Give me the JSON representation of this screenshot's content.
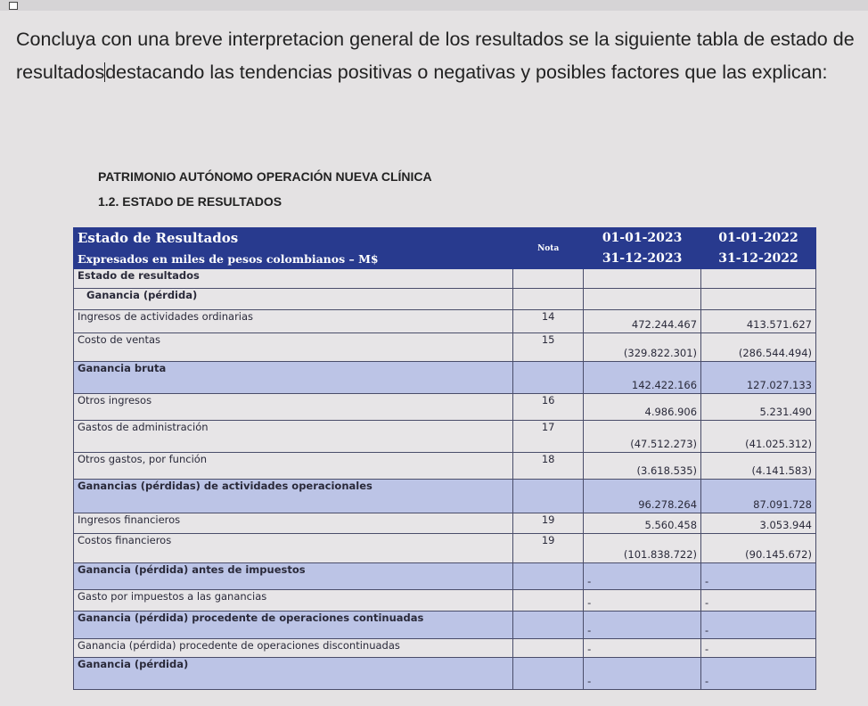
{
  "prompt": {
    "before_cursor": "Concluya con una breve interpretacion general de los resultados  se la siguiente tabla de estado de resultados",
    "after_cursor": "destacando  las tendencias positivas o negativas y posibles factores que las explican:"
  },
  "doc": {
    "entity": "PATRIMONIO AUTÓNOMO OPERACIÓN NUEVA CLÍNICA",
    "section": "1.2. ESTADO DE RESULTADOS"
  },
  "table": {
    "title": "Estado de Resultados",
    "subtitle": "Expresados en miles de pesos colombianos – M$",
    "nota_header": "Nota",
    "periods": [
      {
        "from": "01-01-2023",
        "to": "31-12-2023"
      },
      {
        "from": "01-01-2022",
        "to": "31-12-2022"
      }
    ],
    "rows": [
      {
        "label": "Estado de resultados",
        "nota": "",
        "v2023": "",
        "v2022": "",
        "bold": true,
        "band": false
      },
      {
        "label": "  Ganancia (pérdida)",
        "nota": "",
        "v2023": "",
        "v2022": "",
        "bold": true,
        "band": false
      },
      {
        "label": "Ingresos de actividades ordinarias",
        "nota": "14",
        "v2023": "472.244.467",
        "v2022": "413.571.627",
        "bold": false,
        "band": false
      },
      {
        "label": "Costo de ventas",
        "nota": "15",
        "v2023": "(329.822.301)",
        "v2022": "(286.544.494)",
        "bold": false,
        "band": false
      },
      {
        "label": "Ganancia bruta",
        "nota": "",
        "v2023": "142.422.166",
        "v2022": "127.027.133",
        "bold": true,
        "band": true
      },
      {
        "label": "Otros ingresos",
        "nota": "16",
        "v2023": "4.986.906",
        "v2022": "5.231.490",
        "bold": false,
        "band": false
      },
      {
        "label": "Gastos de administración",
        "nota": "17",
        "v2023": "(47.512.273)",
        "v2022": "(41.025.312)",
        "bold": false,
        "band": false
      },
      {
        "label": "Otros gastos, por función",
        "nota": "18",
        "v2023": "(3.618.535)",
        "v2022": "(4.141.583)",
        "bold": false,
        "band": false
      },
      {
        "label": "Ganancias (pérdidas) de actividades operacionales",
        "nota": "",
        "v2023": "96.278.264",
        "v2022": "87.091.728",
        "bold": true,
        "band": true
      },
      {
        "label": "Ingresos financieros",
        "nota": "19",
        "v2023": "5.560.458",
        "v2022": "3.053.944",
        "bold": false,
        "band": false
      },
      {
        "label": "Costos financieros",
        "nota": "19",
        "v2023": "(101.838.722)",
        "v2022": "(90.145.672)",
        "bold": false,
        "band": false
      },
      {
        "label": "Ganancia (pérdida) antes de impuestos",
        "nota": "",
        "v2023": "-",
        "v2022": "-",
        "bold": true,
        "band": true
      },
      {
        "label": "Gasto por impuestos a las ganancias",
        "nota": "",
        "v2023": "-",
        "v2022": "-",
        "bold": false,
        "band": false
      },
      {
        "label": "Ganancia (pérdida) procedente de operaciones continuadas",
        "nota": "",
        "v2023": "-",
        "v2022": "-",
        "bold": true,
        "band": true
      },
      {
        "label": "Ganancia (pérdida) procedente de operaciones discontinuadas",
        "nota": "",
        "v2023": "-",
        "v2022": "-",
        "bold": false,
        "band": false
      },
      {
        "label": "Ganancia (pérdida)",
        "nota": "",
        "v2023": "-",
        "v2022": "-",
        "bold": true,
        "band": true
      }
    ]
  }
}
